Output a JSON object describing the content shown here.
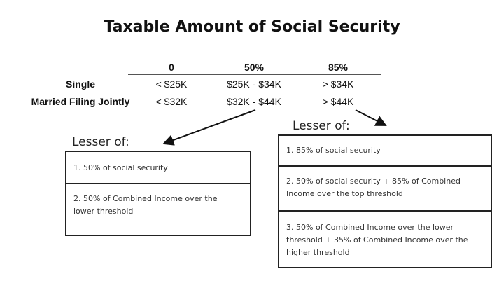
{
  "title": "Taxable Amount of Social Security",
  "table": {
    "headers": [
      "0",
      "50%",
      "85%"
    ],
    "rows": [
      {
        "label": "Single",
        "cells": [
          "< $25K",
          "$25K - $34K",
          "> $34K"
        ]
      },
      {
        "label": "Married Filing Jointly",
        "cells": [
          "< $32K",
          "$32K - $44K",
          "> $44K"
        ]
      }
    ]
  },
  "left_box": {
    "heading": "Lesser of:",
    "items": [
      "1. 50% of social security",
      "2. 50% of Combined Income over the lower threshold"
    ]
  },
  "right_box": {
    "heading": "Lesser of:",
    "items": [
      "1. 85% of social security",
      "2. 50% of social security + 85% of Combined Income over the top threshold",
      "3. 50% of Combined Income over the lower threshold + 35% of Combined Income over the higher threshold"
    ]
  }
}
